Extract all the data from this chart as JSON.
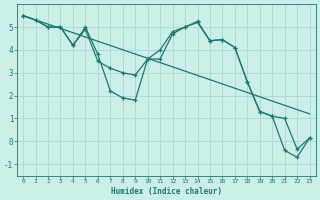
{
  "xlabel": "Humidex (Indice chaleur)",
  "background_color": "#cceee8",
  "grid_color": "#aad8d0",
  "line_color": "#1a7a6e",
  "xlim": [
    -0.5,
    23.5
  ],
  "ylim": [
    -1.5,
    6.0
  ],
  "xticks": [
    0,
    1,
    2,
    3,
    4,
    5,
    6,
    7,
    8,
    9,
    10,
    11,
    12,
    13,
    14,
    15,
    16,
    17,
    18,
    19,
    20,
    21,
    22,
    23
  ],
  "yticks": [
    -1,
    0,
    1,
    2,
    3,
    4,
    5
  ],
  "series1_x": [
    0,
    1,
    2,
    3,
    4,
    5,
    6,
    7,
    8,
    9,
    10,
    11,
    12,
    13,
    14,
    15,
    16,
    17,
    18,
    19,
    20,
    21,
    22,
    23
  ],
  "series1_y": [
    5.5,
    5.3,
    5.0,
    5.0,
    4.2,
    5.0,
    3.8,
    2.2,
    1.9,
    1.8,
    3.6,
    4.0,
    4.8,
    5.0,
    5.25,
    4.4,
    4.45,
    4.1,
    2.6,
    1.3,
    1.1,
    1.0,
    -0.35,
    0.15
  ],
  "series2_x": [
    0,
    1,
    2,
    3,
    4,
    5,
    6,
    7,
    8,
    9,
    10,
    11,
    12,
    13,
    14,
    15,
    16,
    17,
    18,
    19,
    20,
    21,
    22,
    23
  ],
  "series2_y": [
    5.5,
    5.3,
    5.0,
    5.0,
    4.2,
    4.9,
    3.5,
    3.2,
    3.0,
    2.9,
    3.6,
    3.6,
    4.7,
    5.0,
    5.2,
    4.4,
    4.45,
    4.1,
    2.6,
    1.3,
    1.1,
    -0.4,
    -0.7,
    0.15
  ],
  "trend_x": [
    0,
    23
  ],
  "trend_y": [
    5.5,
    1.2
  ],
  "font_color": "#1a7a6e"
}
